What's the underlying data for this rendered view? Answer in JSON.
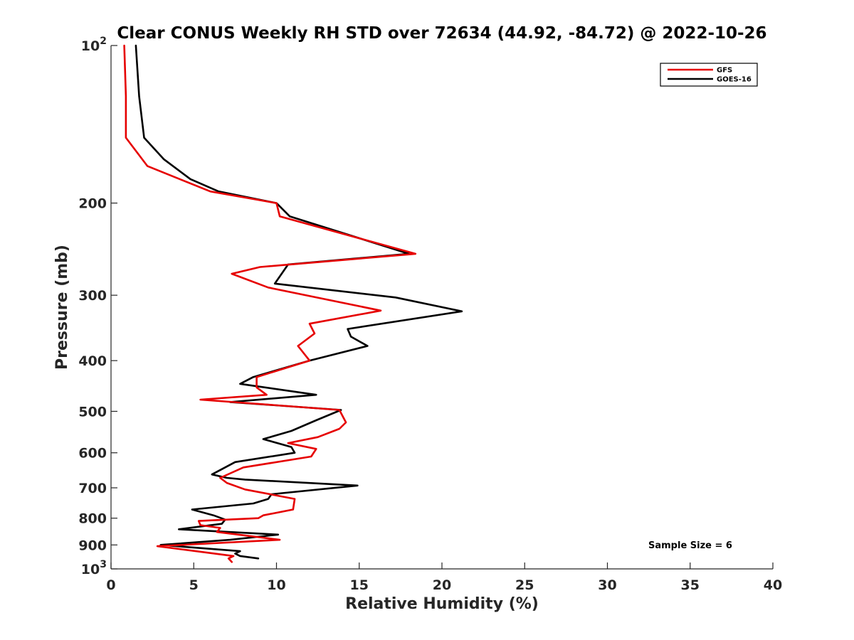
{
  "chart_data": {
    "type": "line",
    "title": "Clear CONUS Weekly RH STD over 72634 (44.92, -84.72) @ 2022-10-26",
    "xlabel": "Relative Humidity (%)",
    "ylabel": "Pressure (mb)",
    "xlim": [
      0,
      40
    ],
    "ylim": [
      100,
      1000
    ],
    "yscale": "log",
    "y_reversed": true,
    "xticks": [
      0,
      5,
      10,
      15,
      20,
      25,
      30,
      35,
      40
    ],
    "xtick_labels": [
      "0",
      "5",
      "10",
      "15",
      "20",
      "25",
      "30",
      "35",
      "40"
    ],
    "yticks": [
      {
        "value": 100,
        "base": "10",
        "exp": "2"
      },
      {
        "value": 200,
        "label": "200"
      },
      {
        "value": 300,
        "label": "300"
      },
      {
        "value": 400,
        "label": "400"
      },
      {
        "value": 500,
        "label": "500"
      },
      {
        "value": 600,
        "label": "600"
      },
      {
        "value": 700,
        "label": "700"
      },
      {
        "value": 800,
        "label": "800"
      },
      {
        "value": 900,
        "label": "900"
      },
      {
        "value": 1000,
        "base": "10",
        "exp": "3"
      }
    ],
    "legend_position": "top-right",
    "annotation": "Sample Size = 6",
    "series": [
      {
        "name": "GFS",
        "color": "#e60000",
        "points": [
          [
            0.8,
            100
          ],
          [
            0.9,
            125
          ],
          [
            0.9,
            150
          ],
          [
            2.2,
            170
          ],
          [
            6,
            190
          ],
          [
            10,
            200
          ],
          [
            10.2,
            212
          ],
          [
            18.4,
            250
          ],
          [
            9,
            265
          ],
          [
            7.3,
            273
          ],
          [
            9.5,
            290
          ],
          [
            16.3,
            321
          ],
          [
            12,
            340
          ],
          [
            12.3,
            355
          ],
          [
            11.3,
            375
          ],
          [
            12,
            400
          ],
          [
            8.8,
            430
          ],
          [
            8.8,
            450
          ],
          [
            9.4,
            465
          ],
          [
            5.4,
            475
          ],
          [
            13.8,
            497
          ],
          [
            14.2,
            525
          ],
          [
            13.8,
            540
          ],
          [
            12.5,
            560
          ],
          [
            10.7,
            575
          ],
          [
            12.4,
            590
          ],
          [
            12.1,
            610
          ],
          [
            8,
            640
          ],
          [
            6.6,
            670
          ],
          [
            7,
            685
          ],
          [
            8.1,
            705
          ],
          [
            11.1,
            735
          ],
          [
            11,
            770
          ],
          [
            9.2,
            790
          ],
          [
            8.9,
            800
          ],
          [
            5.3,
            810
          ],
          [
            5.4,
            825
          ],
          [
            6.6,
            835
          ],
          [
            6.4,
            850
          ],
          [
            10.2,
            880
          ],
          [
            2.8,
            905
          ],
          [
            7.4,
            945
          ],
          [
            7.1,
            955
          ],
          [
            7.3,
            970
          ]
        ]
      },
      {
        "name": "GOES-16",
        "color": "#000000",
        "points": [
          [
            1.5,
            100
          ],
          [
            1.7,
            125
          ],
          [
            2,
            150
          ],
          [
            3.2,
            165
          ],
          [
            4.8,
            180
          ],
          [
            6.5,
            190
          ],
          [
            10,
            200
          ],
          [
            10.8,
            212
          ],
          [
            18,
            250
          ],
          [
            10.7,
            262
          ],
          [
            9.9,
            285
          ],
          [
            17.2,
            303
          ],
          [
            21.2,
            322
          ],
          [
            14.3,
            348
          ],
          [
            14.5,
            360
          ],
          [
            15.5,
            375
          ],
          [
            12,
            400
          ],
          [
            8.6,
            430
          ],
          [
            7.8,
            443
          ],
          [
            12.4,
            465
          ],
          [
            7.2,
            480
          ],
          [
            13.9,
            497
          ],
          [
            12.4,
            520
          ],
          [
            10.9,
            545
          ],
          [
            9.2,
            565
          ],
          [
            10.9,
            585
          ],
          [
            11.1,
            600
          ],
          [
            7.5,
            625
          ],
          [
            6.1,
            660
          ],
          [
            7,
            670
          ],
          [
            8.1,
            675
          ],
          [
            14.9,
            693
          ],
          [
            9.7,
            720
          ],
          [
            9.5,
            735
          ],
          [
            8.6,
            750
          ],
          [
            4.9,
            770
          ],
          [
            6.2,
            790
          ],
          [
            6.9,
            805
          ],
          [
            6.7,
            820
          ],
          [
            4.1,
            840
          ],
          [
            10.1,
            860
          ],
          [
            7.2,
            880
          ],
          [
            3,
            900
          ],
          [
            7.8,
            925
          ],
          [
            7.5,
            935
          ],
          [
            7.8,
            945
          ],
          [
            8.9,
            955
          ]
        ]
      }
    ]
  }
}
